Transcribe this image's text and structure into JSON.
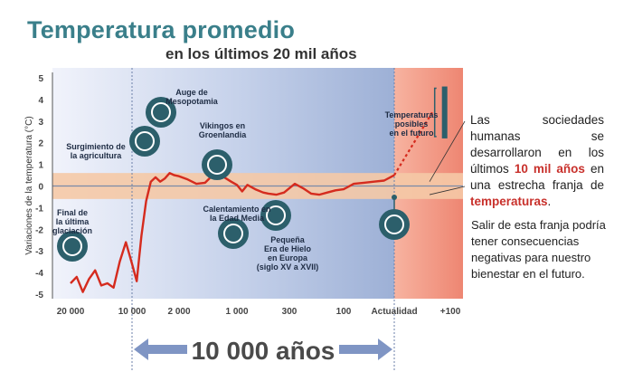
{
  "title": "Temperatura promedio",
  "subtitle": "en los últimos 20 mil años",
  "chart_data": {
    "type": "line",
    "ylabel": "Variaciones de la temperatura (°C)",
    "ylim": [
      -5,
      5
    ],
    "y_ticks": [
      "5",
      "4",
      "3",
      "2",
      "1",
      "0",
      "-1",
      "-2",
      "-3",
      "-4",
      "-5"
    ],
    "x_ticks": [
      "20 000",
      "10 000",
      "2 000",
      "1 000",
      "300",
      "100",
      "Actualidad",
      "+100"
    ],
    "band": {
      "low": -0.6,
      "high": 0.6
    },
    "series": [
      {
        "values_note": "",
        "x": [
          0,
          0.1,
          0.2,
          0.3,
          0.4,
          0.5,
          0.6,
          0.7,
          0.8,
          0.9,
          1.0,
          1.1,
          1.2,
          1.3,
          1.4,
          1.5,
          1.6,
          1.7,
          1.8,
          1.9,
          2.0,
          2.15,
          2.3,
          2.45,
          2.6,
          2.75,
          2.9,
          3.0,
          3.1,
          3.2,
          3.35,
          3.5,
          3.6,
          3.75,
          3.9,
          4.0,
          4.1,
          4.25,
          4.4,
          4.55,
          4.7,
          4.85,
          5.0,
          5.2,
          5.4,
          5.6,
          5.8,
          6.0
        ],
        "y": [
          -4.5,
          -4.2,
          -4.9,
          -4.3,
          -3.9,
          -4.6,
          -4.5,
          -4.7,
          -3.5,
          -2.6,
          -3.6,
          -4.4,
          -2.3,
          -0.7,
          0.2,
          0.4,
          0.2,
          0.35,
          0.6,
          0.5,
          0.45,
          0.3,
          0.1,
          0.15,
          0.55,
          0.45,
          0.2,
          0.05,
          -0.25,
          0.05,
          -0.15,
          -0.3,
          -0.35,
          -0.4,
          -0.3,
          -0.1,
          0.1,
          -0.1,
          -0.35,
          -0.4,
          -0.3,
          -0.2,
          -0.15,
          0.1,
          0.15,
          0.2,
          0.25,
          0.5
        ]
      }
    ],
    "projection": {
      "x": [
        6.0,
        6.7
      ],
      "y": [
        0.5,
        3.5
      ]
    },
    "future_range": {
      "low": 2.2,
      "high": 4.6
    },
    "annotations": [
      {
        "text": "Final de\nla última\nglaciación",
        "icon": "mammoth-icon"
      },
      {
        "text": "Surgimiento de\nla agricultura",
        "icon": "wheat-icon"
      },
      {
        "text": "Auge de\nMesopotamia",
        "icon": "bowl-icon"
      },
      {
        "text": "Vikingos en\nGroenlandia",
        "icon": "viking-helmet-icon"
      },
      {
        "text": "Calentamiento en\nla Edad Media",
        "icon": "horse-icon"
      },
      {
        "text": "Pequeña\nEra de Hielo\nen Europa\n(siglo XV a XVII)",
        "icon": "mountain-icon"
      },
      {
        "text": "Temperaturas\nposibles\nen el futuro",
        "icon": ""
      },
      {
        "text": "",
        "icon": "computer-icon"
      }
    ]
  },
  "span_label": "10 000 años",
  "note": {
    "part1": "Las sociedades humanas se desarrollaron en los últimos ",
    "highlight1": "10 mil años",
    "part2": " en una estrecha franja de ",
    "highlight2": "temperaturas",
    "part3": "."
  },
  "note2": "Salir de esta franja podría tener consecuencias negativas para nuestro bienestar en el futuro.",
  "colors": {
    "title": "#3a7f8a",
    "band": "#f5c9a6",
    "line": "#d52b1e",
    "bg_left": "#eef0fa",
    "bg_right": "#9fb3d6",
    "future": "#ef8f78",
    "arrow": "#7f95c4",
    "icon": "#2c5f6b"
  }
}
